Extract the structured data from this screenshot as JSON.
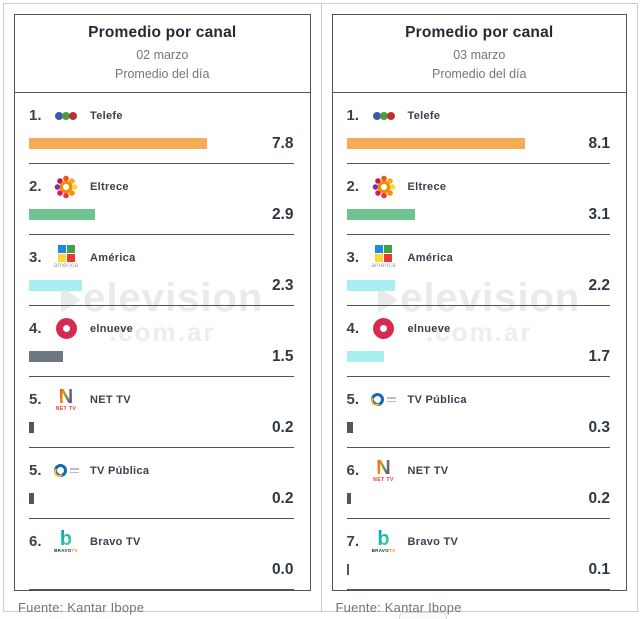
{
  "watermark": {
    "line1": "elevision",
    "line2": ".com.ar"
  },
  "panels": [
    {
      "title": "Promedio por canal",
      "date": "02 marzo",
      "subtitle": "Promedio del día",
      "source": "Fuente: Kantar Ibope",
      "rows": [
        {
          "rank": "1.",
          "channel": "Telefe",
          "value": "7.8",
          "bar_color": "#f6ac55",
          "logo": "telefe"
        },
        {
          "rank": "2.",
          "channel": "Eltrece",
          "value": "2.9",
          "bar_color": "#6fc491",
          "logo": "eltrece"
        },
        {
          "rank": "3.",
          "channel": "América",
          "value": "2.3",
          "bar_color": "#a9eff2",
          "logo": "america"
        },
        {
          "rank": "4.",
          "channel": "elnueve",
          "value": "1.5",
          "bar_color": "#6f7881",
          "logo": "elnueve"
        },
        {
          "rank": "5.",
          "channel": "NET TV",
          "value": "0.2",
          "bar_color": "#4e565e",
          "logo": "nettv"
        },
        {
          "rank": "5.",
          "channel": "TV Pública",
          "value": "0.2",
          "bar_color": "#4e565e",
          "logo": "tvpublica"
        },
        {
          "rank": "6.",
          "channel": "Bravo TV",
          "value": "0.0",
          "bar_color": "#4e565e",
          "logo": "bravotv"
        }
      ]
    },
    {
      "title": "Promedio por canal",
      "date": "03 marzo",
      "subtitle": "Promedio del día",
      "source": "Fuente: Kantar Ibope",
      "rows": [
        {
          "rank": "1.",
          "channel": "Telefe",
          "value": "8.1",
          "bar_color": "#f6ac55",
          "logo": "telefe"
        },
        {
          "rank": "2.",
          "channel": "Eltrece",
          "value": "3.1",
          "bar_color": "#6fc491",
          "logo": "eltrece"
        },
        {
          "rank": "3.",
          "channel": "América",
          "value": "2.2",
          "bar_color": "#a9eff2",
          "logo": "america"
        },
        {
          "rank": "4.",
          "channel": "elnueve",
          "value": "1.7",
          "bar_color": "#a9eff2",
          "logo": "elnueve"
        },
        {
          "rank": "5.",
          "channel": "TV Pública",
          "value": "0.3",
          "bar_color": "#4e565e",
          "logo": "tvpublica"
        },
        {
          "rank": "6.",
          "channel": "NET TV",
          "value": "0.2",
          "bar_color": "#4e565e",
          "logo": "nettv"
        },
        {
          "rank": "7.",
          "channel": "Bravo TV",
          "value": "0.1",
          "bar_color": "#4e565e",
          "logo": "bravotv"
        }
      ]
    }
  ],
  "chart_data": [
    {
      "type": "bar",
      "title": "Promedio por canal",
      "subtitle": "02 marzo · Promedio del día",
      "categories": [
        "Telefe",
        "Eltrece",
        "América",
        "elnueve",
        "NET TV",
        "TV Pública",
        "Bravo TV"
      ],
      "values": [
        7.8,
        2.9,
        2.3,
        1.5,
        0.2,
        0.2,
        0.0
      ],
      "ranks": [
        "1.",
        "2.",
        "3.",
        "4.",
        "5.",
        "5.",
        "6."
      ],
      "source": "Fuente: Kantar Ibope",
      "orientation": "horizontal",
      "xlim": [
        0,
        8.1
      ]
    },
    {
      "type": "bar",
      "title": "Promedio por canal",
      "subtitle": "03 marzo · Promedio del día",
      "categories": [
        "Telefe",
        "Eltrece",
        "América",
        "elnueve",
        "TV Pública",
        "NET TV",
        "Bravo TV"
      ],
      "values": [
        8.1,
        3.1,
        2.2,
        1.7,
        0.3,
        0.2,
        0.1
      ],
      "ranks": [
        "1.",
        "2.",
        "3.",
        "4.",
        "5.",
        "6.",
        "7."
      ],
      "source": "Fuente: Kantar Ibope",
      "orientation": "horizontal",
      "xlim": [
        0,
        8.1
      ]
    }
  ]
}
